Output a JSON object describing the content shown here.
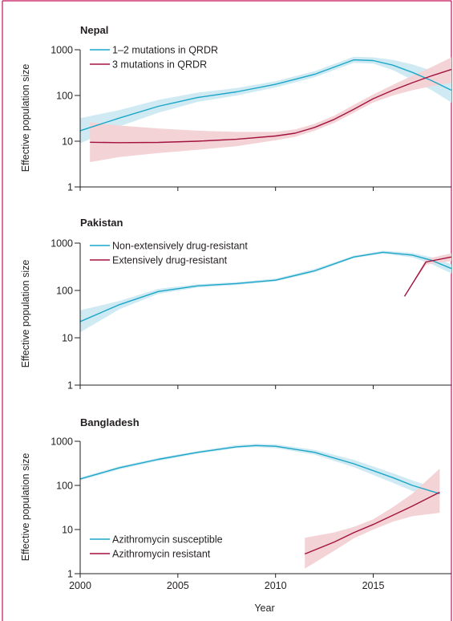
{
  "colors": {
    "frame": "#c3135a",
    "series_a": "#1ba6c7",
    "series_a_band": "#cfeaf3",
    "series_b": "#a3123f",
    "series_b_band": "#f3d3d6",
    "axis": "#231f20"
  },
  "chart_data": [
    {
      "type": "line",
      "title": "Nepal",
      "ylabel": "Effective population size",
      "yscale": "log",
      "ylim": [
        1,
        1000
      ],
      "xlim": [
        2000,
        2019
      ],
      "yticks": [
        1,
        10,
        100,
        1000
      ],
      "ytick_labels": [
        "1",
        "10",
        "100",
        "1000"
      ],
      "xtick_labels": [],
      "legend_position": "top-left",
      "series": [
        {
          "name": "1–2 mutations in QRDR",
          "color": "#1ba6c7",
          "x": [
            2000,
            2002,
            2004,
            2006,
            2008,
            2010,
            2012,
            2014,
            2015,
            2016,
            2017,
            2018,
            2019
          ],
          "values": [
            17,
            32,
            58,
            90,
            120,
            175,
            290,
            600,
            580,
            460,
            320,
            210,
            130
          ],
          "lower": [
            9,
            21,
            42,
            72,
            100,
            150,
            250,
            520,
            500,
            360,
            220,
            130,
            70
          ],
          "upper": [
            32,
            48,
            80,
            115,
            145,
            205,
            340,
            700,
            680,
            600,
            480,
            350,
            240
          ]
        },
        {
          "name": "3 mutations in QRDR",
          "color": "#a3123f",
          "x": [
            2000.5,
            2002,
            2004,
            2006,
            2008,
            2010,
            2011,
            2012,
            2013,
            2014,
            2015,
            2016,
            2017,
            2018,
            2019
          ],
          "values": [
            9.5,
            9.3,
            9.4,
            10,
            11,
            13,
            15,
            20,
            30,
            50,
            85,
            130,
            190,
            270,
            370
          ],
          "lower": [
            3.5,
            4.5,
            5.5,
            6.5,
            7.8,
            10.5,
            12.5,
            17,
            25,
            42,
            70,
            100,
            130,
            160,
            190
          ],
          "upper": [
            26,
            22,
            19,
            17,
            16,
            16,
            18,
            24,
            36,
            62,
            105,
            170,
            270,
            420,
            680
          ]
        }
      ]
    },
    {
      "type": "line",
      "title": "Pakistan",
      "ylabel": "Effective population size",
      "yscale": "log",
      "ylim": [
        1,
        1000
      ],
      "xlim": [
        2000,
        2019
      ],
      "yticks": [
        1,
        10,
        100,
        1000
      ],
      "ytick_labels": [
        "1",
        "10",
        "100",
        "1000"
      ],
      "xtick_labels": [],
      "legend_position": "top-left",
      "series": [
        {
          "name": "Non-extensively drug-resistant",
          "color": "#1ba6c7",
          "x": [
            2000,
            2002,
            2004,
            2006,
            2008,
            2010,
            2012,
            2014,
            2015.5,
            2017,
            2018,
            2019
          ],
          "values": [
            22,
            50,
            95,
            125,
            140,
            165,
            260,
            510,
            640,
            560,
            430,
            290
          ],
          "lower": [
            13,
            40,
            85,
            115,
            130,
            155,
            240,
            480,
            600,
            500,
            360,
            230
          ],
          "upper": [
            38,
            60,
            108,
            135,
            150,
            178,
            285,
            545,
            690,
            620,
            500,
            360
          ]
        },
        {
          "name": "Extensively drug-resistant",
          "color": "#a3123f",
          "x": [
            2016.6,
            2017.7,
            2019
          ],
          "values": [
            75,
            400,
            510
          ],
          "lower": [
            75,
            350,
            420
          ],
          "upper": [
            75,
            460,
            610
          ]
        }
      ]
    },
    {
      "type": "line",
      "title": "Bangladesh",
      "ylabel": "Effective population size",
      "xlabel": "Year",
      "yscale": "log",
      "ylim": [
        1,
        1000
      ],
      "xlim": [
        2000,
        2019
      ],
      "yticks": [
        1,
        10,
        100,
        1000
      ],
      "ytick_labels": [
        "1",
        "10",
        "100",
        "1000"
      ],
      "xticks": [
        2000,
        2005,
        2010,
        2015
      ],
      "xtick_labels": [
        "2000",
        "2005",
        "2010",
        "2015"
      ],
      "legend_position": "bottom-left",
      "series": [
        {
          "name": "Azithromycin susceptible",
          "color": "#1ba6c7",
          "x": [
            2000,
            2002,
            2004,
            2006,
            2008,
            2009,
            2010,
            2012,
            2014,
            2016,
            2017,
            2018.4
          ],
          "values": [
            140,
            250,
            390,
            560,
            750,
            800,
            770,
            560,
            310,
            150,
            100,
            65
          ],
          "lower": [
            130,
            230,
            360,
            520,
            700,
            740,
            700,
            500,
            260,
            115,
            75,
            55
          ],
          "upper": [
            152,
            270,
            420,
            600,
            820,
            880,
            850,
            640,
            380,
            190,
            130,
            80
          ]
        },
        {
          "name": "Azithromycin resistant",
          "color": "#a3123f",
          "x": [
            2011.5,
            2013,
            2014,
            2015,
            2016,
            2017,
            2018.4
          ],
          "values": [
            2.8,
            5.2,
            8.5,
            13,
            21,
            34,
            70
          ],
          "lower": [
            1.3,
            3.3,
            6.3,
            10,
            15,
            20,
            24
          ],
          "upper": [
            6.5,
            8.6,
            11.5,
            17,
            32,
            65,
            240
          ]
        }
      ]
    }
  ]
}
